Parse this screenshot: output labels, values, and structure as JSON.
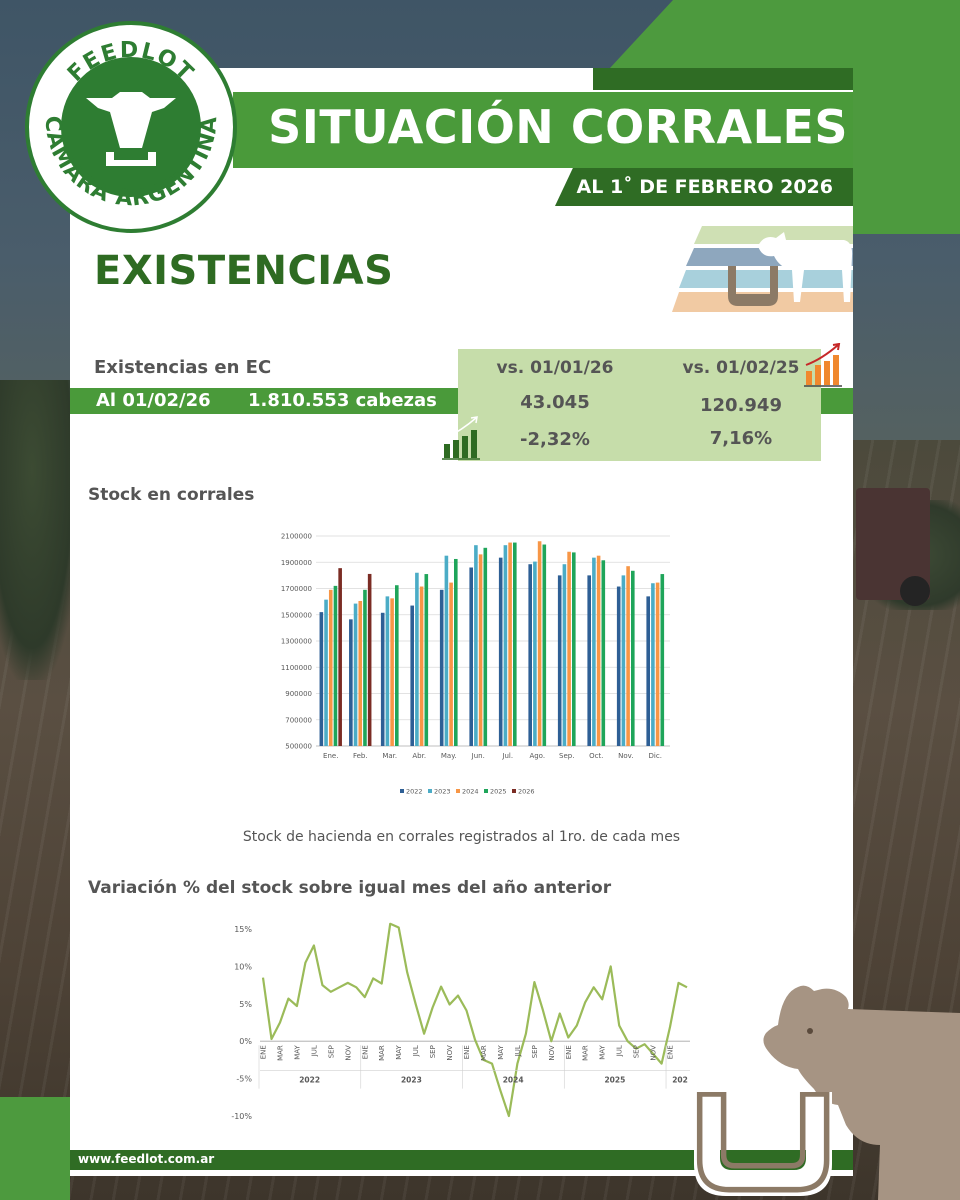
{
  "header": {
    "title": "SITUACIÓN CORRALES",
    "subtitle": "AL 1˚ DE FEBRERO 2026"
  },
  "logo": {
    "top_text": "FEEDLOT",
    "bottom_text": "CÁMARA ARGENTINA"
  },
  "section_title": "EXISTENCIAS",
  "stats": {
    "label": "Existencias en EC",
    "date": "Al 01/02/26",
    "total": "1.810.553 cabezas",
    "col1_header": "vs. 01/01/26",
    "col2_header": "vs. 01/02/25",
    "col1_value": "43.045",
    "col2_value": "120.949",
    "col1_pct": "-2,32%",
    "col2_pct": "7,16%"
  },
  "chart1_title": "Stock en corrales",
  "chart1_caption": "Stock de hacienda en corrales registrados al 1ro. de cada mes",
  "chart2_title": "Variación % del stock sobre igual mes del año anterior",
  "footer": {
    "url": "www.feedlot.com.ar"
  },
  "colors": {
    "green": "#4a9a3a",
    "dark_green": "#2f6c24",
    "light_green": "#c6ddaa",
    "series_2022": "#2e5f95",
    "series_2023": "#4bacc6",
    "series_2024": "#f79646",
    "series_2025": "#1fa55a",
    "series_2026": "#7b2c24",
    "line": "#9bbb59"
  },
  "chart_data": [
    {
      "type": "bar",
      "categories": [
        "Ene.",
        "Feb.",
        "Mar.",
        "Abr.",
        "May.",
        "Jun.",
        "Jul.",
        "Ago.",
        "Sep.",
        "Oct.",
        "Nov.",
        "Dic."
      ],
      "series": [
        {
          "name": "2022",
          "values": [
            1520000,
            1465000,
            1515000,
            1570000,
            1690000,
            1860000,
            1935000,
            1885000,
            1800000,
            1800000,
            1715000,
            1640000
          ]
        },
        {
          "name": "2023",
          "values": [
            1615000,
            1585000,
            1640000,
            1820000,
            1950000,
            2030000,
            2030000,
            1905000,
            1885000,
            1935000,
            1800000,
            1740000
          ]
        },
        {
          "name": "2024",
          "values": [
            1690000,
            1605000,
            1625000,
            1715000,
            1745000,
            1960000,
            2050000,
            2060000,
            1980000,
            1950000,
            1870000,
            1745000
          ]
        },
        {
          "name": "2025",
          "values": [
            1720000,
            1690000,
            1725000,
            1810000,
            1925000,
            2010000,
            2050000,
            2035000,
            1975000,
            1915000,
            1835000,
            1810000
          ]
        },
        {
          "name": "2026",
          "values": [
            1855000,
            1811000,
            null,
            null,
            null,
            null,
            null,
            null,
            null,
            null,
            null,
            null
          ]
        }
      ],
      "ylim": [
        500000,
        2100000
      ],
      "yticks": [
        500000,
        700000,
        900000,
        1100000,
        1300000,
        1500000,
        1700000,
        1900000,
        2100000
      ],
      "legend": "bottom",
      "grid": true
    },
    {
      "type": "line",
      "x_tick_labels": [
        "ENE",
        "MAR",
        "MAY",
        "JUL",
        "SEP",
        "NOV",
        "ENE",
        "MAR",
        "MAY",
        "JUL",
        "SEP",
        "NOV",
        "ENE",
        "MAR",
        "MAY",
        "JUL",
        "SEP",
        "NOV",
        "ENE",
        "MAR",
        "MAY",
        "JUL",
        "SEP",
        "NOV",
        "ENE"
      ],
      "year_groups": [
        "2022",
        "2023",
        "2024",
        "2025",
        "202"
      ],
      "series": [
        {
          "values": [
            8.5,
            0.3,
            2.5,
            5.7,
            4.7,
            10.5,
            12.8,
            7.5,
            6.6,
            7.2,
            7.8,
            7.2,
            5.9,
            8.4,
            7.7,
            15.7,
            15.2,
            9.2,
            5.0,
            1.0,
            4.5,
            7.3,
            4.9,
            6.1,
            4.1,
            0.2,
            -2.5,
            -3.0,
            -6.6,
            -10.0,
            -3.0,
            1.0,
            7.9,
            4.2,
            0.0,
            3.7,
            0.5,
            2.1,
            5.2,
            7.2,
            5.6,
            10.0,
            2.1,
            0.0,
            -1.0,
            -0.4,
            -1.7,
            -3.0,
            1.9,
            7.8,
            7.2
          ]
        }
      ],
      "ylim": [
        -10,
        15
      ],
      "yticks": [
        "15%",
        "10%",
        "5%",
        "0%",
        "-5%",
        "-10%"
      ],
      "ytick_values": [
        15,
        10,
        5,
        0,
        -5,
        -10
      ],
      "grid": false
    }
  ]
}
